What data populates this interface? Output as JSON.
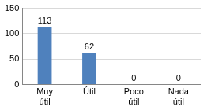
{
  "chart_data": {
    "type": "bar",
    "categories": [
      "Muy útil",
      "Útil",
      "Poco útil",
      "Nada útil"
    ],
    "values": [
      113,
      62,
      0,
      0
    ],
    "color": "#4f81bd",
    "ylim": [
      0,
      150
    ],
    "yticks": [
      0,
      50,
      100,
      150
    ],
    "grid": true,
    "data_labels": true
  }
}
